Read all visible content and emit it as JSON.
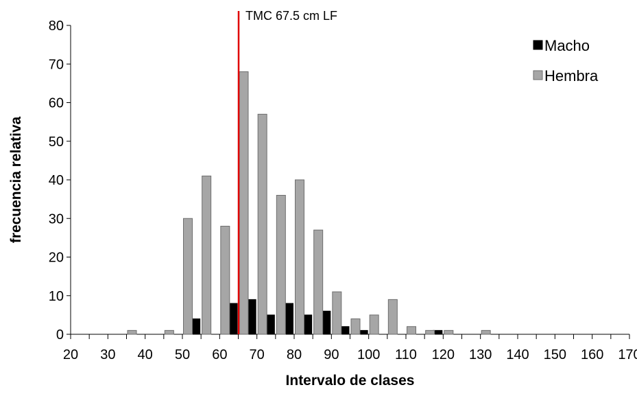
{
  "chart_data": {
    "type": "bar",
    "xlabel": "Intervalo de clases",
    "ylabel": "frecuencia relativa",
    "x_ticks": [
      "20",
      "30",
      "40",
      "50",
      "60",
      "70",
      "80",
      "90",
      "100",
      "110",
      "120",
      "130",
      "140",
      "150",
      "160",
      "170"
    ],
    "y_ticks": [
      "0",
      "10",
      "20",
      "30",
      "40",
      "50",
      "60",
      "70",
      "80"
    ],
    "xlim": [
      20,
      170
    ],
    "ylim": [
      0,
      80
    ],
    "legend_position": "top-right",
    "series": [
      {
        "name": "Macho",
        "color": "#000000",
        "points": [
          [
            55,
            4
          ],
          [
            65,
            8
          ],
          [
            70,
            9
          ],
          [
            75,
            5
          ],
          [
            80,
            8
          ],
          [
            85,
            5
          ],
          [
            90,
            6
          ],
          [
            95,
            2
          ],
          [
            100,
            1
          ],
          [
            120,
            1
          ]
        ]
      },
      {
        "name": "Hembra",
        "color": "#a6a6a6",
        "points": [
          [
            35,
            1
          ],
          [
            45,
            1
          ],
          [
            50,
            30
          ],
          [
            55,
            41
          ],
          [
            60,
            28
          ],
          [
            65,
            68
          ],
          [
            70,
            57
          ],
          [
            75,
            36
          ],
          [
            80,
            40
          ],
          [
            85,
            27
          ],
          [
            90,
            11
          ],
          [
            95,
            4
          ],
          [
            100,
            5
          ],
          [
            105,
            9
          ],
          [
            110,
            2
          ],
          [
            115,
            1
          ],
          [
            120,
            1
          ],
          [
            130,
            1
          ]
        ]
      }
    ],
    "reference_line": {
      "x": 65,
      "label": "TMC 67.5 cm LF",
      "color": "#e00000"
    }
  }
}
